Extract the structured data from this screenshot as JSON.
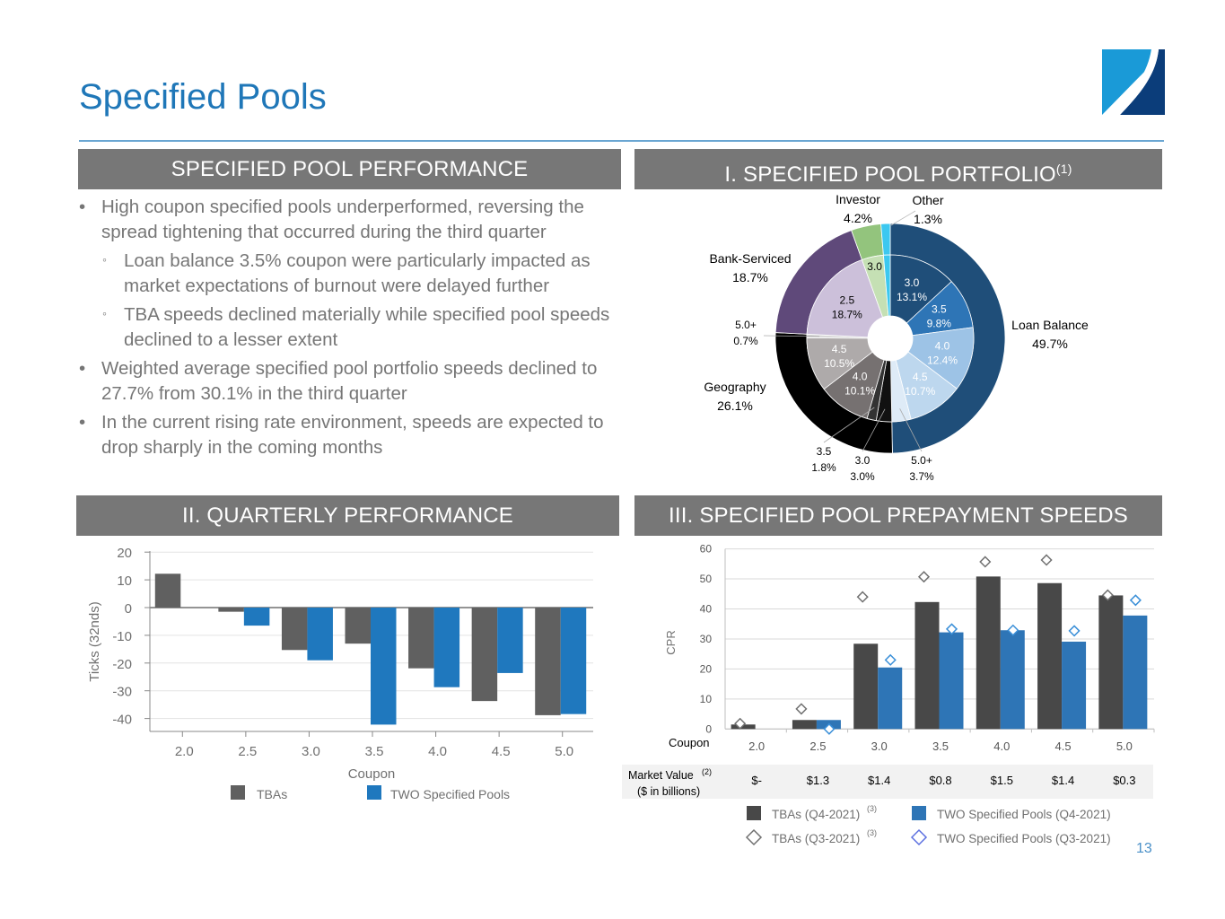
{
  "page": {
    "title": "Specified Pools",
    "page_number": "13",
    "logo": "company-logo"
  },
  "sections": {
    "performance": {
      "title": "SPECIFIED POOL PERFORMANCE"
    },
    "portfolio": {
      "title": "I. SPECIFIED POOL PORTFOLIO",
      "footnote": "(1)"
    },
    "quarterly": {
      "title": "II. QUARTERLY PERFORMANCE"
    },
    "speeds": {
      "title": "III. SPECIFIED POOL PREPAYMENT SPEEDS"
    }
  },
  "bullets": [
    {
      "level": 1,
      "text": "High coupon specified pools underperformed, reversing the spread tightening that occurred during the third quarter"
    },
    {
      "level": 2,
      "text": "Loan balance 3.5% coupon were particularly impacted as market expectations of burnout were delayed further"
    },
    {
      "level": 2,
      "text": "TBA speeds declined materially while specified pool speeds declined to a lesser extent"
    },
    {
      "level": 1,
      "text": "Weighted average specified pool portfolio speeds declined to 27.7% from 30.1% in the third quarter"
    },
    {
      "level": 1,
      "text": "In the current rising rate environment, speeds are expected to drop sharply in the coming months"
    }
  ],
  "bullet_glyphs": {
    "level1": "•",
    "level2": "◦"
  },
  "chart_data": [
    {
      "type": "pie",
      "variant": "nested-donut",
      "title": "I. SPECIFIED POOL PORTFOLIO",
      "outer": [
        {
          "label": "Loan Balance",
          "value": 49.7,
          "pct": "49.7%",
          "color": "#1f4e79"
        },
        {
          "label": "Geography",
          "value": 26.1,
          "pct": "26.1%",
          "color": "#000000"
        },
        {
          "label": "Bank-Serviced",
          "value": 18.7,
          "pct": "18.7%",
          "color": "#5f497a"
        },
        {
          "label": "Investor",
          "value": 4.2,
          "pct": "4.2%",
          "color": "#93c47d"
        },
        {
          "label": "Other",
          "value": 1.3,
          "pct": "1.3%",
          "color": "#3cc8f0"
        }
      ],
      "inner": [
        {
          "group": "Loan Balance",
          "coupon": "3.0",
          "value": 13.1,
          "pct": "13.1%",
          "color": "#1f4e79",
          "text_color": "#ffffff"
        },
        {
          "group": "Loan Balance",
          "coupon": "3.5",
          "value": 9.8,
          "pct": "9.8%",
          "color": "#2e75b6",
          "text_color": "#ffffff"
        },
        {
          "group": "Loan Balance",
          "coupon": "4.0",
          "value": 12.4,
          "pct": "12.4%",
          "color": "#9dc3e6",
          "text_color": "#ffffff"
        },
        {
          "group": "Loan Balance",
          "coupon": "4.5",
          "value": 10.7,
          "pct": "10.7%",
          "color": "#bdd7ee",
          "text_color": "#ffffff"
        },
        {
          "group": "Loan Balance",
          "coupon": "5.0+",
          "value": 3.7,
          "pct": "3.7%",
          "color": "#deebf7",
          "text_color": "#000000",
          "external": true
        },
        {
          "group": "Geography",
          "coupon": "3.0",
          "value": 3.0,
          "pct": "3.0%",
          "color": "#111111",
          "text_color": "#000000",
          "external": true
        },
        {
          "group": "Geography",
          "coupon": "3.5",
          "value": 1.8,
          "pct": "1.8%",
          "color": "#333333",
          "text_color": "#000000",
          "external": true
        },
        {
          "group": "Geography",
          "coupon": "4.0",
          "value": 10.1,
          "pct": "10.1%",
          "color": "#767171",
          "text_color": "#ffffff"
        },
        {
          "group": "Geography",
          "coupon": "4.5",
          "value": 10.5,
          "pct": "10.5%",
          "color": "#aeaaaa",
          "text_color": "#ffffff"
        },
        {
          "group": "Geography",
          "coupon": "5.0+",
          "value": 0.7,
          "pct": "0.7%",
          "color": "#d9d9d9",
          "text_color": "#000000",
          "external": true
        },
        {
          "group": "Bank-Serviced",
          "coupon": "2.5",
          "value": 18.7,
          "pct": "18.7%",
          "color": "#ccc0da",
          "text_color": "#000000"
        },
        {
          "group": "Investor",
          "coupon": "3.0",
          "value": 4.2,
          "pct": "",
          "color": "#c5e0b4",
          "text_color": "#000000"
        },
        {
          "group": "Other",
          "coupon": "",
          "value": 1.3,
          "pct": "",
          "color": "#3cc8f0",
          "text_color": "#000000"
        }
      ]
    },
    {
      "type": "bar",
      "title": "II. QUARTERLY PERFORMANCE",
      "categories": [
        "2.0",
        "2.5",
        "3.0",
        "3.5",
        "4.0",
        "4.5",
        "5.0"
      ],
      "series": [
        {
          "name": "TBAs",
          "color": "#606060",
          "values": [
            12.2,
            -1.5,
            -15.3,
            -13.0,
            -21.9,
            -33.7,
            -38.8
          ]
        },
        {
          "name": "TWO Specified Pools",
          "color": "#1f78be",
          "values": [
            null,
            -6.5,
            -19.0,
            -42.2,
            -28.7,
            -23.6,
            -38.4
          ]
        }
      ],
      "xlabel": "Coupon",
      "ylabel": "Ticks (32nds)",
      "ylim": [
        -45,
        20
      ],
      "yticks": [
        20,
        10,
        0,
        -10,
        -20,
        -30,
        -40
      ],
      "grid": true,
      "legend": "bottom"
    },
    {
      "type": "bar",
      "subtype": "bar-with-markers",
      "title": "III. SPECIFIED POOL PREPAYMENT SPEEDS",
      "categories": [
        "2.0",
        "2.5",
        "3.0",
        "3.5",
        "4.0",
        "4.5",
        "5.0"
      ],
      "category_axis_title": "Coupon",
      "series": [
        {
          "name": "TBAs (Q4-2021)",
          "footnote": "(3)",
          "kind": "bar",
          "color": "#484848",
          "values": [
            1.5,
            3.0,
            28.4,
            42.3,
            50.8,
            48.6,
            44.5
          ]
        },
        {
          "name": "TWO Specified Pools (Q4-2021)",
          "footnote": "",
          "kind": "bar",
          "color": "#2e75b6",
          "values": [
            null,
            3.0,
            20.5,
            32.2,
            32.9,
            29.1,
            37.8
          ]
        },
        {
          "name": "TBAs (Q3-2021)",
          "footnote": "(3)",
          "kind": "diamond",
          "color": "#707070",
          "values": [
            1.8,
            6.7,
            44.0,
            50.7,
            55.7,
            56.3,
            44.6
          ]
        },
        {
          "name": "TWO Specified Pools (Q3-2021)",
          "footnote": "",
          "kind": "diamond",
          "color": "#3a8fd8",
          "values": [
            null,
            0.0,
            23.0,
            33.3,
            32.9,
            32.7,
            42.9
          ]
        }
      ],
      "ylabel": "CPR",
      "ylim": [
        0,
        60
      ],
      "yticks": [
        60,
        50,
        40,
        30,
        20,
        10,
        0
      ],
      "grid": true,
      "legend": "bottom",
      "market_value": {
        "label": "Market Value",
        "label_footnote": "(2)",
        "sublabel": "($ in billions)",
        "values": [
          "$-",
          "$1.3",
          "$1.4",
          "$0.8",
          "$1.5",
          "$1.4",
          "$0.3"
        ]
      }
    }
  ]
}
